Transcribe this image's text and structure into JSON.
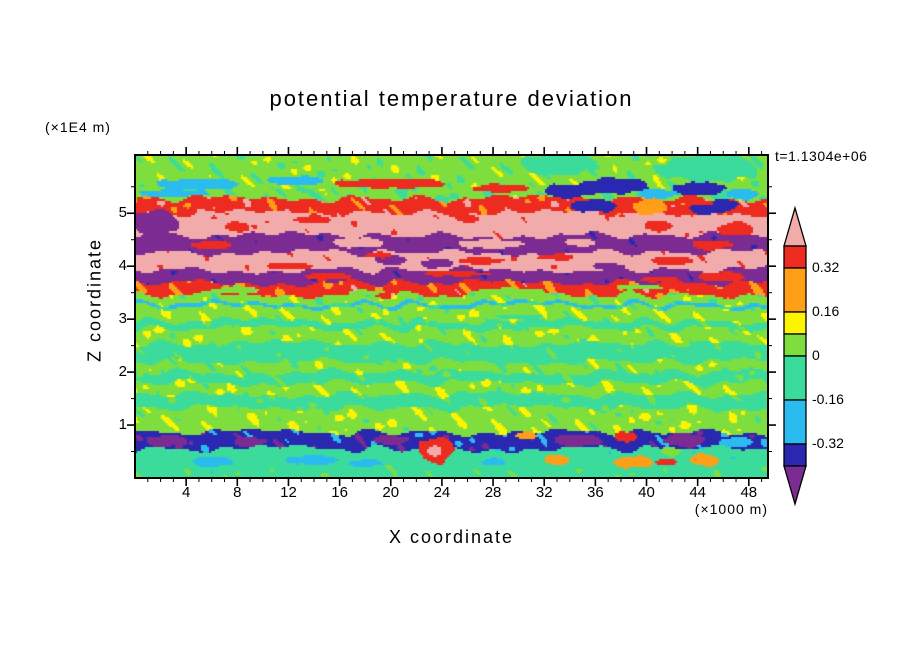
{
  "header": {
    "title": "potential temperature deviation",
    "time_label": "t=1.1304e+06"
  },
  "axes": {
    "x": {
      "label": "X coordinate",
      "unit": "(×1000 m)",
      "ticks": [
        "4",
        "8",
        "12",
        "16",
        "20",
        "24",
        "28",
        "32",
        "36",
        "40",
        "44",
        "48"
      ],
      "tick_values": [
        4,
        8,
        12,
        16,
        20,
        24,
        28,
        32,
        36,
        40,
        44,
        48
      ],
      "minor_step": 1,
      "range": [
        0,
        49.5
      ]
    },
    "z": {
      "label": "Z coordinate",
      "unit": "(×1E4 m)",
      "ticks": [
        "1",
        "2",
        "3",
        "4",
        "5"
      ],
      "tick_values": [
        1,
        2,
        3,
        4,
        5
      ],
      "minor_step": 0.5,
      "range": [
        0,
        6.1
      ]
    }
  },
  "colorbar": {
    "labels": [
      "0.32",
      "0.16",
      "0",
      "-0.16",
      "-0.32"
    ],
    "top_arrow_color": "#F2ABAB",
    "bottom_arrow_color": "#7B2B92",
    "segment_colors": [
      "#ED2B20",
      "#FF9E17",
      "#FDF400",
      "#7EDE3E",
      "#3BDB9B",
      "#2BBCEF",
      "#2A28B0"
    ]
  },
  "chart_data": {
    "type": "heatmap",
    "title": "potential temperature deviation",
    "xlabel": "X coordinate (×1000 m)",
    "ylabel": "Z coordinate (×1E4 m)",
    "time": "t=1.1304e+06",
    "xlim": [
      0,
      49.5
    ],
    "zlim": [
      0,
      6.1
    ],
    "contour_interval_labels": [
      0.32,
      0.16,
      0,
      -0.16,
      -0.32
    ],
    "palette": [
      [
        0.4,
        "#F2ABAB"
      ],
      [
        0.32,
        "#ED2B20"
      ],
      [
        0.16,
        "#FF9E17"
      ],
      [
        0.08,
        "#FDF400"
      ],
      [
        0.0,
        "#7EDE3E"
      ],
      [
        -0.16,
        "#3BDB9B"
      ],
      [
        -0.32,
        "#2BBCEF"
      ],
      [
        -0.4,
        "#2A28B0"
      ],
      [
        -99,
        "#7B2B92"
      ]
    ],
    "field": {
      "comment_units": "bands: [zmin,zmax,value] in (x1E4 m, deviation); blobs: [x,z,rx,rz,value] with x in x1000 m",
      "bands": [
        [
          5.5,
          6.3,
          0.04
        ],
        [
          5.28,
          5.5,
          0.02
        ],
        [
          5.0,
          5.28,
          0.36
        ],
        [
          4.58,
          5.0,
          0.45
        ],
        [
          4.26,
          4.58,
          -0.45
        ],
        [
          3.93,
          4.26,
          0.45
        ],
        [
          3.69,
          3.93,
          -0.45
        ],
        [
          3.46,
          3.69,
          0.35
        ],
        [
          3.3,
          3.46,
          0.04
        ],
        [
          3.23,
          3.3,
          -0.18
        ],
        [
          2.96,
          3.23,
          0.05
        ],
        [
          2.82,
          2.96,
          -0.04
        ],
        [
          2.54,
          2.82,
          0.05
        ],
        [
          2.2,
          2.54,
          -0.05
        ],
        [
          2.0,
          2.2,
          0.04
        ],
        [
          1.8,
          2.0,
          -0.04
        ],
        [
          1.58,
          1.8,
          0.05
        ],
        [
          1.32,
          1.58,
          -0.04
        ],
        [
          0.86,
          1.32,
          0.05
        ],
        [
          0.55,
          0.86,
          -0.36
        ],
        [
          0.16,
          0.55,
          -0.1
        ],
        [
          -0.3,
          0.16,
          -0.04
        ]
      ],
      "blobs": [
        [
          5,
          5.55,
          3.5,
          0.1,
          -0.2
        ],
        [
          12.5,
          5.62,
          2.5,
          0.08,
          -0.2
        ],
        [
          3,
          5.38,
          2.5,
          0.07,
          -0.2
        ],
        [
          20,
          5.56,
          4.5,
          0.09,
          0.36
        ],
        [
          28.5,
          5.47,
          2,
          0.08,
          0.36
        ],
        [
          33.8,
          5.42,
          2,
          0.13,
          -0.36
        ],
        [
          37.5,
          5.52,
          2.4,
          0.15,
          -0.36
        ],
        [
          40.8,
          5.36,
          1.5,
          0.1,
          -0.2
        ],
        [
          44.3,
          5.47,
          2,
          0.13,
          -0.36
        ],
        [
          47.5,
          5.36,
          1.4,
          0.1,
          -0.2
        ],
        [
          45,
          5.85,
          4,
          0.25,
          -0.04
        ],
        [
          33,
          5.92,
          3,
          0.2,
          -0.04
        ],
        [
          40.3,
          5.12,
          1.2,
          0.15,
          0.25
        ],
        [
          43.2,
          5.06,
          1.3,
          0.1,
          0.36
        ],
        [
          46.2,
          5.16,
          1.1,
          0.1,
          -0.36
        ],
        [
          36,
          5.14,
          1.8,
          0.12,
          -0.36
        ],
        [
          44.8,
          5.08,
          1.4,
          0.1,
          -0.36
        ],
        [
          1.5,
          4.8,
          1.8,
          0.26,
          -0.45
        ],
        [
          8,
          4.74,
          1.1,
          0.09,
          0.36
        ],
        [
          14,
          4.88,
          1.5,
          0.07,
          0.36
        ],
        [
          26,
          4.9,
          1,
          0.07,
          0.36
        ],
        [
          41,
          4.76,
          1.1,
          0.1,
          0.36
        ],
        [
          47,
          4.7,
          1.3,
          0.13,
          0.36
        ],
        [
          17.5,
          4.44,
          2,
          0.09,
          0.45
        ],
        [
          27.8,
          4.42,
          2.3,
          0.09,
          0.45
        ],
        [
          34.8,
          4.45,
          1.4,
          0.07,
          0.45
        ],
        [
          45,
          4.4,
          1.5,
          0.09,
          0.36
        ],
        [
          6,
          4.4,
          1.5,
          0.07,
          0.36
        ],
        [
          20,
          4.12,
          1.4,
          0.09,
          -0.45
        ],
        [
          23.6,
          4.05,
          1.1,
          0.09,
          -0.45
        ],
        [
          37,
          4,
          1.3,
          0.06,
          -0.45
        ],
        [
          19,
          4.21,
          1.1,
          0.055,
          0.36
        ],
        [
          27,
          4.1,
          1.8,
          0.07,
          0.36
        ],
        [
          12,
          4,
          1.8,
          0.06,
          0.36
        ],
        [
          33,
          4.17,
          1.4,
          0.06,
          0.36
        ],
        [
          42,
          4.1,
          1.6,
          0.07,
          0.36
        ],
        [
          15,
          3.8,
          1.8,
          0.06,
          0.36
        ],
        [
          25,
          3.86,
          2.5,
          0.05,
          0.36
        ],
        [
          41,
          3.75,
          1.3,
          0.05,
          0.36
        ],
        [
          46,
          3.8,
          1.8,
          0.09,
          0.36
        ],
        [
          8,
          3.55,
          1.8,
          0.07,
          0.04
        ],
        [
          18,
          3.5,
          1.5,
          0.05,
          0.04
        ],
        [
          29.5,
          3.52,
          2.5,
          0.07,
          0.04
        ],
        [
          39.5,
          3.6,
          1.8,
          0.05,
          0.04
        ],
        [
          30,
          3.05,
          2,
          0.04,
          -0.04
        ],
        [
          2.5,
          0.7,
          1.5,
          0.11,
          -0.45
        ],
        [
          9,
          0.68,
          1.2,
          0.09,
          -0.45
        ],
        [
          20,
          0.72,
          1.5,
          0.09,
          -0.45
        ],
        [
          34.5,
          0.7,
          1.9,
          0.11,
          -0.45
        ],
        [
          43,
          0.72,
          1.7,
          0.13,
          -0.45
        ],
        [
          23.5,
          0.52,
          1.3,
          0.24,
          0.36
        ],
        [
          23.5,
          0.52,
          0.55,
          0.1,
          0.45
        ],
        [
          38.4,
          0.78,
          0.9,
          0.09,
          0.36
        ],
        [
          30.5,
          0.8,
          0.8,
          0.07,
          0.25
        ],
        [
          42,
          0.5,
          0.8,
          0.08,
          0.04
        ],
        [
          47,
          0.68,
          1.2,
          0.09,
          -0.2
        ],
        [
          33,
          0.34,
          1.1,
          0.09,
          0.25
        ],
        [
          39,
          0.3,
          1.4,
          0.11,
          0.25
        ],
        [
          44.5,
          0.34,
          1.3,
          0.11,
          0.25
        ],
        [
          41.5,
          0.3,
          0.8,
          0.07,
          0.36
        ],
        [
          28,
          0.3,
          1,
          0.07,
          -0.2
        ],
        [
          14,
          0.34,
          2,
          0.09,
          -0.2
        ],
        [
          6,
          0.3,
          1.5,
          0.09,
          -0.2
        ],
        [
          18,
          0.28,
          1.2,
          0.07,
          -0.2
        ]
      ]
    }
  }
}
